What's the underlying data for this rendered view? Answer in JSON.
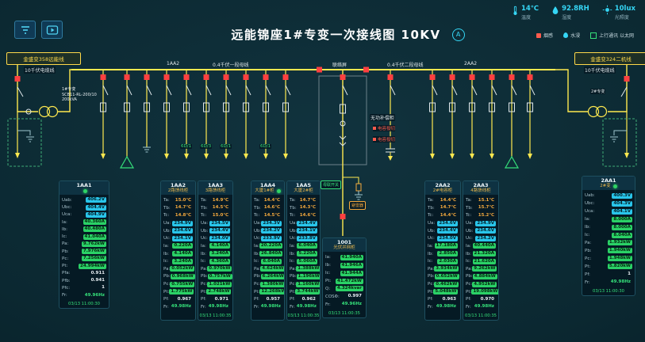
{
  "header": {
    "title": "远能锦座1#专变一次接线图 10KV",
    "badge": "A",
    "env": [
      {
        "value": "14℃",
        "label": "温度"
      },
      {
        "value": "92.8RH",
        "label": "湿度"
      },
      {
        "value": "10lux",
        "label": "光照度"
      }
    ],
    "legend": [
      "烟感",
      "水浸",
      "上行通讯 以太网"
    ]
  },
  "diagram": {
    "left_line": "金盛变358远能线",
    "right_line": "金盛变324二机线",
    "left_cable": "10千伏电缆线",
    "right_cable": "10千伏电缆线",
    "section_tag_1": "1AA2",
    "bus1_label": "0.4千伏一段母线",
    "tie_label": "联络屏",
    "bus2_label": "0.4千伏二段母线",
    "section_tag_2": "2AA2",
    "t1_name": "1#专变",
    "t1_spec": "SCB11-RL-200/10",
    "t1_capacity": "200kVA",
    "t2_name": "2#专变",
    "feeder_tags": [
      "6D/1",
      "6D/3",
      "6D/1",
      "6D/1"
    ],
    "cap_title": "无功补偿柜",
    "cap_row1": "电容投切",
    "cap_row2": "电容投切",
    "tie_tag": "母联开关",
    "arrester": "避雷器"
  },
  "panels": [
    {
      "title": "1AA1",
      "subtitle": "",
      "dot": true,
      "ts": "03/13 11:00:30",
      "rows": [
        [
          "Uab",
          "406.2V",
          "c"
        ],
        [
          "Ubc",
          "404.4V",
          "c"
        ],
        [
          "Uca",
          "404.9V",
          "c"
        ],
        [
          "Ia",
          "40.360A",
          "g"
        ],
        [
          "Ib",
          "40.480A",
          "g"
        ],
        [
          "Ic",
          "41.040A",
          "g"
        ],
        [
          "Pa",
          "9.762kW",
          "g"
        ],
        [
          "Pb",
          "7.976kW",
          "g"
        ],
        [
          "Pc",
          "7.256kW",
          "g"
        ],
        [
          "Pt",
          "24.994kW",
          "g"
        ],
        [
          "Pfa",
          "0.911",
          "w"
        ],
        [
          "Pfb",
          "0.941",
          "w"
        ],
        [
          "Pfc",
          "1",
          "w"
        ],
        [
          "Fr",
          "49.96Hz",
          "gt"
        ]
      ]
    },
    {
      "title": "1AA2",
      "subtitle": "2路馈线柜",
      "dot": false,
      "rows": [
        [
          "Ta",
          "15.0℃",
          "o"
        ],
        [
          "Tb",
          "14.7℃",
          "o"
        ],
        [
          "Tc",
          "14.8℃",
          "o"
        ],
        [
          "Ua",
          "234.9V",
          "c"
        ],
        [
          "Ub",
          "234.6V",
          "c"
        ],
        [
          "Uc",
          "234.1V",
          "c"
        ],
        [
          "Ia",
          "0.220A",
          "g"
        ],
        [
          "Ib",
          "4.140A",
          "g"
        ],
        [
          "Ic",
          "3.240A",
          "g"
        ],
        [
          "Pa",
          "0.052kW",
          "g"
        ],
        [
          "Pb",
          "0.968kW",
          "g"
        ],
        [
          "Pc",
          "0.755kW",
          "g"
        ],
        [
          "Pt",
          "1.775kW",
          "g"
        ],
        [
          "Pf",
          "0.967",
          "w"
        ],
        [
          "Fr",
          "49.98Hz",
          "gt"
        ]
      ]
    },
    {
      "title": "1AA3",
      "subtitle": "3路馈线柜",
      "dot": false,
      "ts": "03/13 11:00:35",
      "rows": [
        [
          "Ta",
          "14.9℃",
          "o"
        ],
        [
          "Tb",
          "14.5℃",
          "o"
        ],
        [
          "Tc",
          "15.0℃",
          "o"
        ],
        [
          "Ua",
          "234.5V",
          "c"
        ],
        [
          "Ub",
          "234.4V",
          "c"
        ],
        [
          "Uc",
          "234.0V",
          "c"
        ],
        [
          "Ia",
          "4.140A",
          "g"
        ],
        [
          "Ib",
          "3.240A",
          "g"
        ],
        [
          "Ic",
          "4.360A",
          "g"
        ],
        [
          "Pa",
          "0.970kW",
          "g"
        ],
        [
          "Pb",
          "0.757kW",
          "g"
        ],
        [
          "Pc",
          "1.021kW",
          "g"
        ],
        [
          "Pt",
          "2.748kW",
          "g"
        ],
        [
          "Pf",
          "0.971",
          "w"
        ],
        [
          "Fr",
          "49.98Hz",
          "gt"
        ]
      ]
    },
    {
      "title": "1AA4",
      "subtitle": "大厦1#柜",
      "dot": true,
      "rows": [
        [
          "Ta",
          "14.4℃",
          "o"
        ],
        [
          "Tb",
          "14.6℃",
          "o"
        ],
        [
          "Tc",
          "14.5℃",
          "o"
        ],
        [
          "Ua",
          "234.3V",
          "c"
        ],
        [
          "Ub",
          "234.2V",
          "c"
        ],
        [
          "Uc",
          "233.9V",
          "c"
        ],
        [
          "Ia",
          "20.220A",
          "g"
        ],
        [
          "Ib",
          "26.840A",
          "g"
        ],
        [
          "Ic",
          "6.040A",
          "g"
        ],
        [
          "Pa",
          "4.624kW",
          "g"
        ],
        [
          "Pb",
          "6.264kW",
          "g"
        ],
        [
          "Pc",
          "1.380kW",
          "g"
        ],
        [
          "Pt",
          "12.268kW",
          "g"
        ],
        [
          "Pf",
          "0.957",
          "w"
        ],
        [
          "Fr",
          "49.98Hz",
          "gt"
        ]
      ]
    },
    {
      "title": "1AA5",
      "subtitle": "大厦2#柜",
      "dot": false,
      "ts": "03/13 11:00:35",
      "rows": [
        [
          "Ta",
          "14.7℃",
          "o"
        ],
        [
          "Tb",
          "14.3℃",
          "o"
        ],
        [
          "Tc",
          "14.6℃",
          "o"
        ],
        [
          "Ua",
          "234.4V",
          "c"
        ],
        [
          "Ub",
          "234.1V",
          "c"
        ],
        [
          "Uc",
          "233.8V",
          "c"
        ],
        [
          "Ia",
          "6.040A",
          "g"
        ],
        [
          "Ib",
          "5.220A",
          "g"
        ],
        [
          "Ic",
          "5.060A",
          "g"
        ],
        [
          "Pa",
          "1.388kW",
          "g"
        ],
        [
          "Pb",
          "1.196kW",
          "g"
        ],
        [
          "Pc",
          "1.160kW",
          "g"
        ],
        [
          "Pt",
          "3.744kW",
          "g"
        ],
        [
          "Pf",
          "0.962",
          "w"
        ],
        [
          "Fr",
          "49.98Hz",
          "gt"
        ]
      ]
    },
    {
      "title": "1001",
      "subtitle": "光伏并网柜",
      "dot": false,
      "ts": "03/13 11:00:35",
      "rows": [
        [
          "Ia",
          "41.940A",
          "g"
        ],
        [
          "Ib",
          "41.946A",
          "g"
        ],
        [
          "Ic",
          "41.944A",
          "g"
        ],
        [
          "Pt",
          "41.472kW",
          "g"
        ],
        [
          "Q",
          "4.324kvar",
          "g"
        ],
        [
          "COSΦ",
          "0.997",
          "w"
        ],
        [
          "Fr",
          "49.96Hz",
          "gt"
        ]
      ]
    },
    {
      "title": "2AA2",
      "subtitle": "2#电容柜",
      "dot": false,
      "rows": [
        [
          "Ta",
          "14.4℃",
          "o"
        ],
        [
          "Tb",
          "14.7℃",
          "o"
        ],
        [
          "Tc",
          "14.4℃",
          "o"
        ],
        [
          "Ua",
          "234.6V",
          "c"
        ],
        [
          "Ub",
          "234.4V",
          "c"
        ],
        [
          "Uc",
          "234.0V",
          "c"
        ],
        [
          "Ia",
          "17.180A",
          "g"
        ],
        [
          "Ib",
          "2.850A",
          "g"
        ],
        [
          "Ic",
          "2.030A",
          "g"
        ],
        [
          "Pa",
          "3.934kW",
          "g"
        ],
        [
          "Pb",
          "0.652kW",
          "g"
        ],
        [
          "Pc",
          "0.462kW",
          "g"
        ],
        [
          "Pt",
          "5.048kW",
          "g"
        ],
        [
          "Pf",
          "0.963",
          "w"
        ],
        [
          "Fr",
          "49.98Hz",
          "gt"
        ]
      ]
    },
    {
      "title": "2AA3",
      "subtitle": "4路馈线柜",
      "dot": false,
      "ts": "03/13 11:00:35",
      "rows": [
        [
          "Ta",
          "15.1℃",
          "o"
        ],
        [
          "Tb",
          "15.7℃",
          "o"
        ],
        [
          "Tc",
          "15.2℃",
          "o"
        ],
        [
          "Ua",
          "234.9V",
          "c"
        ],
        [
          "Ub",
          "234.6V",
          "c"
        ],
        [
          "Uc",
          "234.2V",
          "c"
        ],
        [
          "Ia",
          "40.440A",
          "g"
        ],
        [
          "Ib",
          "21.320A",
          "g"
        ],
        [
          "Ic",
          "21.620A",
          "g"
        ],
        [
          "Pa",
          "9.262kW",
          "g"
        ],
        [
          "Pb",
          "4.884kW",
          "g"
        ],
        [
          "Pc",
          "4.952kW",
          "g"
        ],
        [
          "Pt",
          "19.098kW",
          "g"
        ],
        [
          "Pf",
          "0.970",
          "w"
        ],
        [
          "Fr",
          "49.98Hz",
          "gt"
        ]
      ]
    },
    {
      "title": "2AA1",
      "subtitle": "2#变",
      "dot": true,
      "ts": "03/13 11:00:30",
      "rows": [
        [
          "Uab",
          "400.3V",
          "c"
        ],
        [
          "Ubc",
          "404.3V",
          "c"
        ],
        [
          "Uca",
          "404.1V",
          "c"
        ],
        [
          "Ia",
          "8.000A",
          "g"
        ],
        [
          "Ib",
          "8.000A",
          "g"
        ],
        [
          "Ic",
          "8.040A",
          "g"
        ],
        [
          "Pa",
          "1.932kW",
          "g"
        ],
        [
          "Pb",
          "1.940kW",
          "g"
        ],
        [
          "Pc",
          "1.948kW",
          "g"
        ],
        [
          "Pt",
          "5.820kW",
          "g"
        ],
        [
          "Pf",
          "1",
          "w"
        ],
        [
          "Fr",
          "49.98Hz",
          "gt"
        ]
      ]
    }
  ]
}
